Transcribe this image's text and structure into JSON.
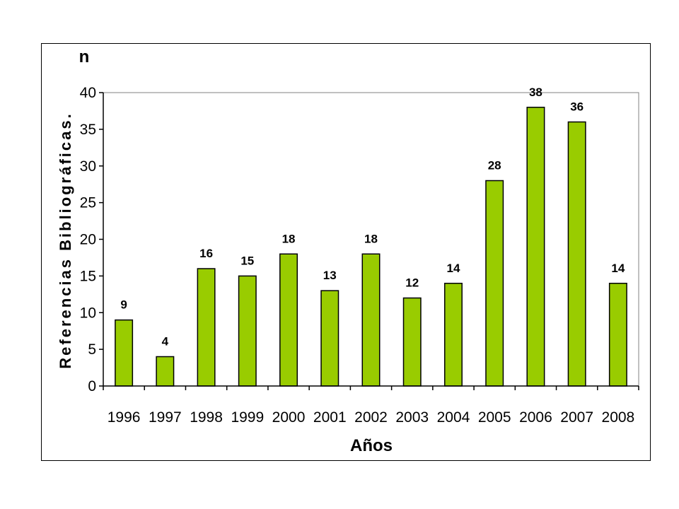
{
  "chart_data": {
    "type": "bar",
    "categories": [
      "1996",
      "1997",
      "1998",
      "1999",
      "2000",
      "2001",
      "2002",
      "2003",
      "2004",
      "2005",
      "2006",
      "2007",
      "2008"
    ],
    "values": [
      9,
      4,
      16,
      15,
      18,
      13,
      18,
      12,
      14,
      28,
      38,
      36,
      14
    ],
    "data_labels": [
      "9",
      "4",
      "16",
      "15",
      "18",
      "13",
      "18",
      "12",
      "14",
      "28",
      "38",
      "36",
      "14"
    ],
    "title": "",
    "xlabel": "Años",
    "ylabel": "Referencias Bibliográficas.",
    "y_unit": "n",
    "ylim": [
      0,
      40
    ],
    "yticks": [
      0,
      5,
      10,
      15,
      20,
      25,
      30,
      35,
      40
    ],
    "grid": false,
    "legend": "none",
    "bar_color": "#99cc00",
    "bar_edge_color": "#000000"
  }
}
